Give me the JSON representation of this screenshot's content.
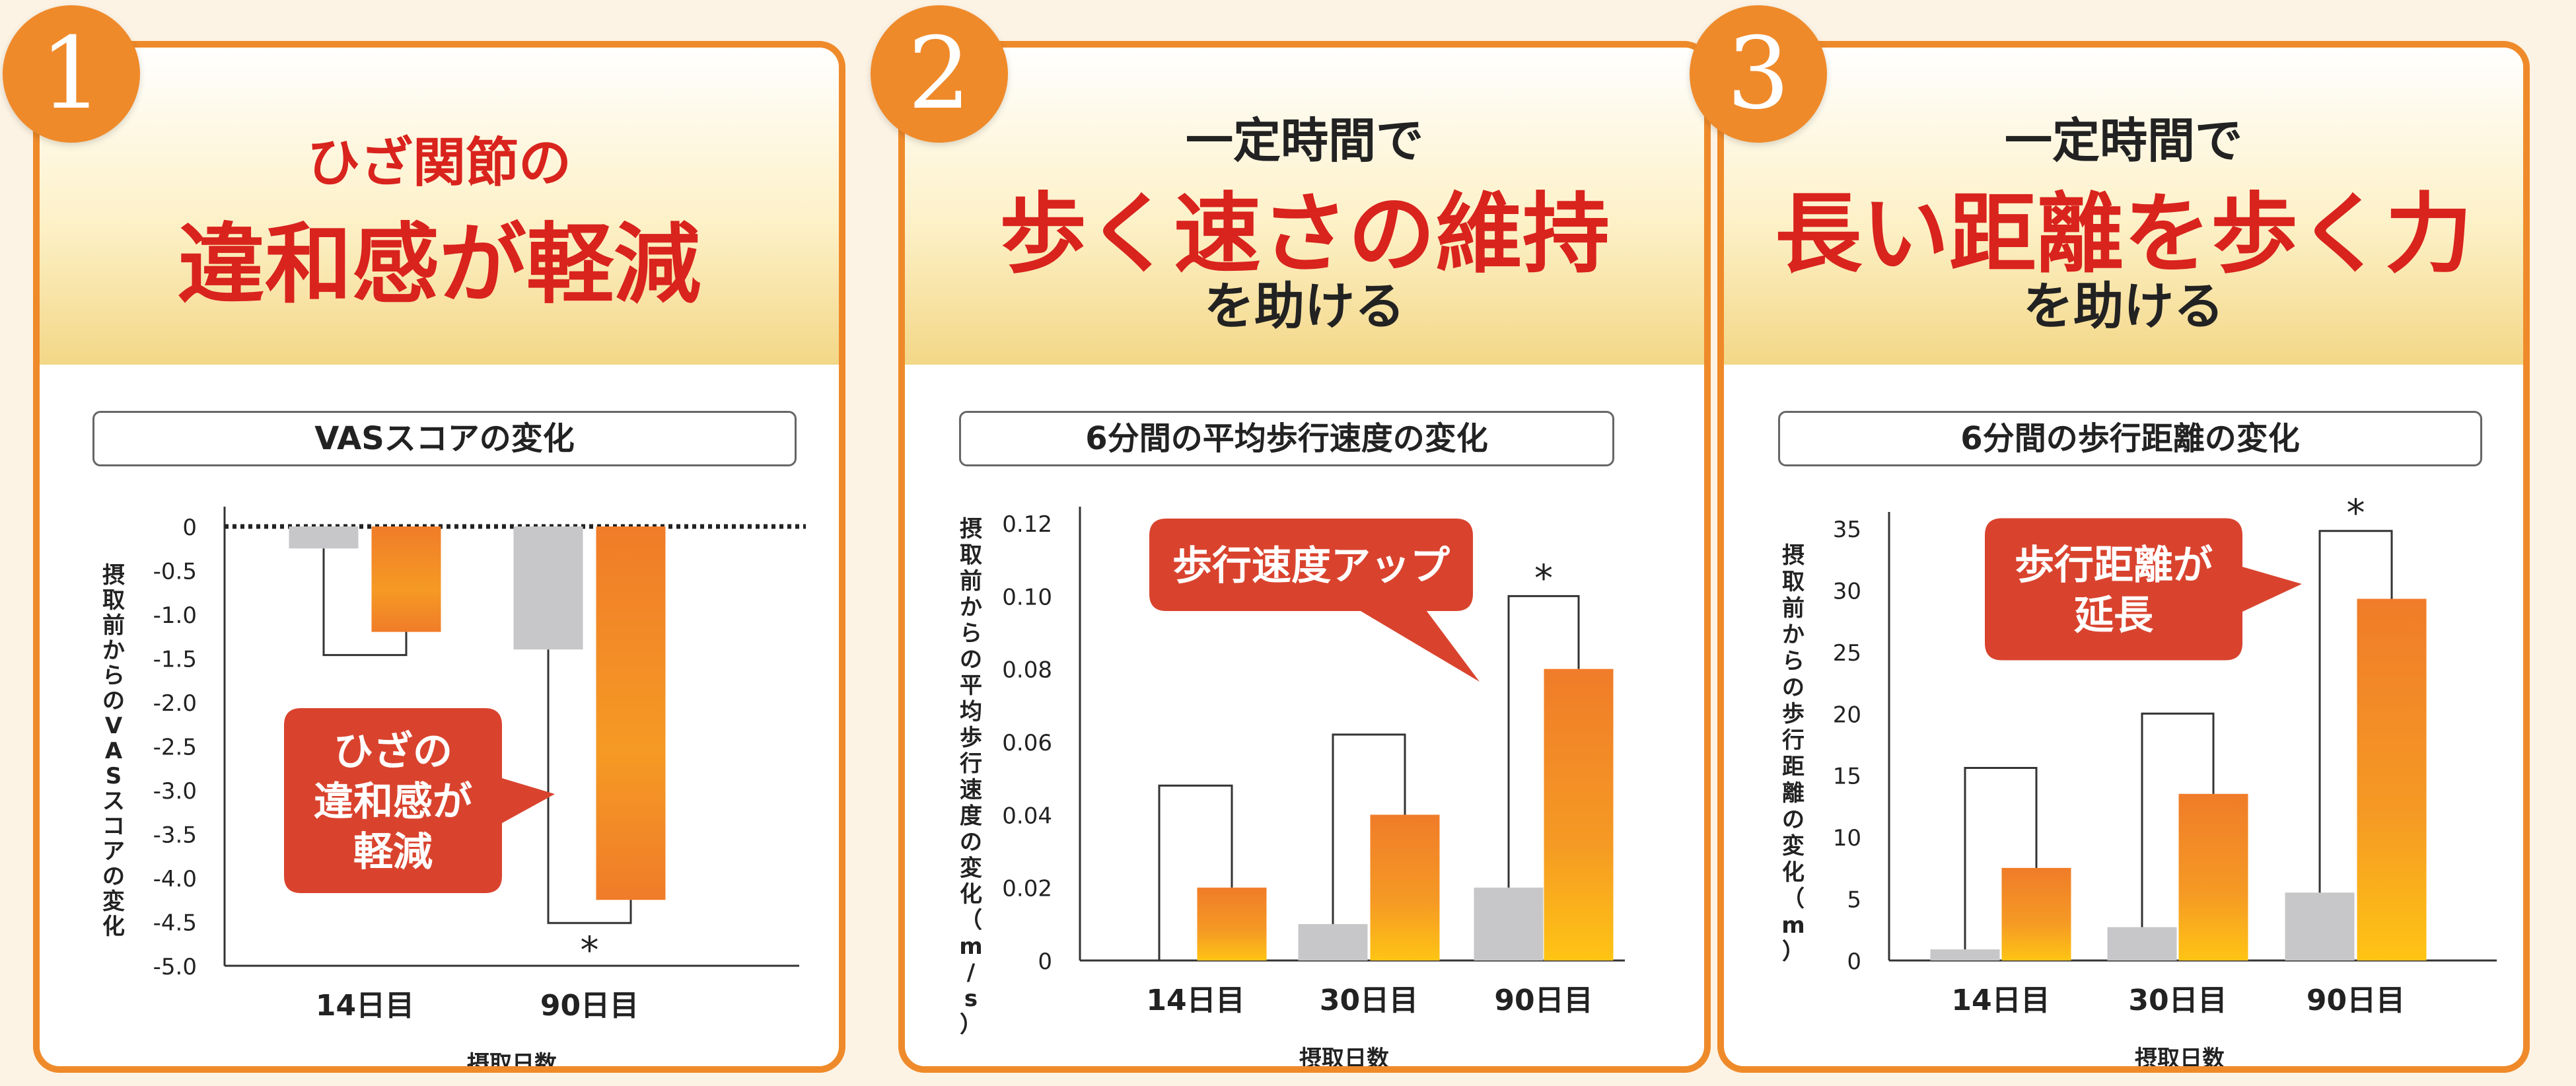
{
  "colors": {
    "accent": "#ef8a2a",
    "red": "#d9231d",
    "bubble": "#d9432e",
    "gray": "#c7c7c9"
  },
  "panels": [
    {
      "badge": "1",
      "headline": {
        "top": "",
        "main": "ひざ関節の",
        "main2": "違和感が軽減",
        "bottom": ""
      },
      "chart_title": "VASスコアの変化",
      "bubble": [
        "ひざの",
        "違和感が",
        "軽減"
      ]
    },
    {
      "badge": "2",
      "headline": {
        "top": "一定時間で",
        "main": "歩く速さの維持",
        "bottom": "を助ける"
      },
      "chart_title": "6分間の平均歩行速度の変化",
      "bubble": [
        "歩行速度アップ"
      ]
    },
    {
      "badge": "3",
      "headline": {
        "top": "一定時間で",
        "main": "長い距離を歩く力",
        "bottom": "を助ける"
      },
      "chart_title": "6分間の歩行距離の変化",
      "bubble": [
        "歩行距離が",
        "延長"
      ]
    }
  ],
  "chart_data": [
    {
      "type": "bar",
      "title": "VASスコアの変化",
      "xlabel": "摂取日数",
      "ylabel": "摂取前からのVASスコアの変化",
      "ylim": [
        -5.0,
        0
      ],
      "yticks": [
        "0",
        "-0.5",
        "-1.0",
        "-1.5",
        "-2.0",
        "-2.5",
        "-3.0",
        "-3.5",
        "-4.0",
        "-4.5",
        "-5.0"
      ],
      "categories": [
        "14日目",
        "90日目"
      ],
      "series": [
        {
          "color": "gray",
          "values": [
            -0.25,
            -1.4
          ]
        },
        {
          "color": "orange",
          "values": [
            -1.2,
            -4.25
          ]
        }
      ],
      "significance": [
        "",
        "*"
      ],
      "grid": false,
      "zero_line": "dotted"
    },
    {
      "type": "bar",
      "title": "6分間の平均歩行速度の変化",
      "xlabel": "摂取日数",
      "ylabel": "摂取前からの平均歩行速度の変化（m/s）",
      "ylim": [
        0,
        0.12
      ],
      "yticks": [
        "0",
        "0.02",
        "0.04",
        "0.06",
        "0.08",
        "0.10",
        "0.12"
      ],
      "categories": [
        "14日目",
        "30日目",
        "90日目"
      ],
      "series": [
        {
          "color": "gray",
          "values": [
            0,
            0.01,
            0.02
          ]
        },
        {
          "color": "orange",
          "values": [
            0.02,
            0.04,
            0.08
          ]
        }
      ],
      "brackets": [
        0.048,
        0.062,
        0.1
      ],
      "significance": [
        "",
        "",
        "*"
      ],
      "grid": false
    },
    {
      "type": "bar",
      "title": "6分間の歩行距離の変化",
      "xlabel": "摂取日数",
      "ylabel": "摂取前からの歩行距離の変化（m）",
      "ylim": [
        0,
        35
      ],
      "yticks": [
        "0",
        "5",
        "10",
        "15",
        "20",
        "25",
        "30",
        "35"
      ],
      "categories": [
        "14日目",
        "30日目",
        "90日目"
      ],
      "series": [
        {
          "color": "gray",
          "values": [
            0.9,
            2.7,
            5.5
          ]
        },
        {
          "color": "orange",
          "values": [
            7.5,
            13.5,
            29.3
          ]
        }
      ],
      "brackets": [
        15.6,
        20,
        34.8
      ],
      "significance": [
        "",
        "",
        "*"
      ],
      "grid": false
    }
  ]
}
